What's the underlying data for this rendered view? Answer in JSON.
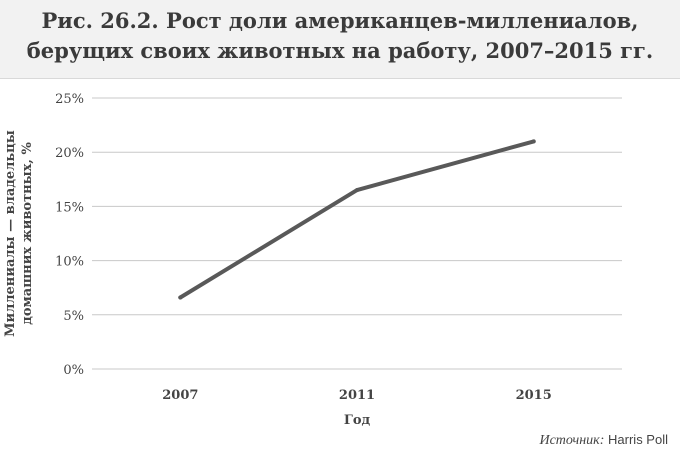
{
  "title_line1": "Рис. 26.2. Рост доли американцев-миллениалов,",
  "title_line2": "берущих своих животных на работу, 2007–2015 гг.",
  "source_label": "Источник:",
  "source_value": "Harris Poll",
  "chart_data": {
    "type": "line",
    "title": "Рис. 26.2. Рост доли американцев-миллениалов, берущих своих животных на работу, 2007–2015 гг.",
    "xlabel": "Год",
    "ylabel_line1": "Миллениалы — владельцы",
    "ylabel_line2": "домашних животных, %",
    "categories": [
      "2007",
      "2011",
      "2015"
    ],
    "series": [
      {
        "values": [
          6.6,
          16.5,
          21.0
        ],
        "color": "#595959"
      }
    ],
    "ylim": [
      0,
      25
    ],
    "yticks": [
      0,
      5,
      10,
      15,
      20,
      25
    ],
    "ytick_labels": [
      "0%",
      "5%",
      "10%",
      "15%",
      "20%",
      "25%"
    ],
    "grid": true,
    "gridline_color": "#c8c8c8"
  }
}
